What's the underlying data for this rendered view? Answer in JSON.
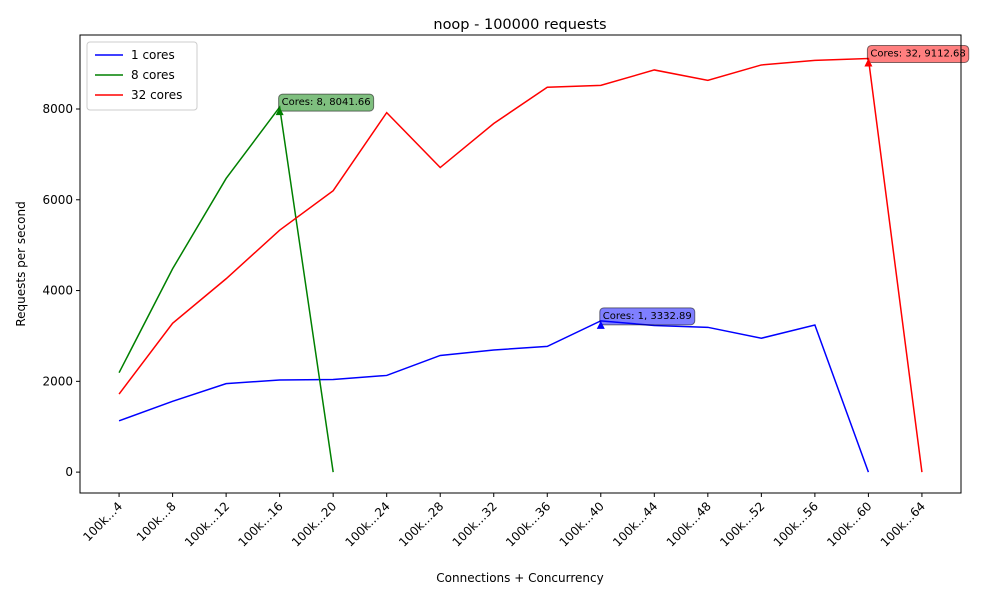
{
  "chart_data": {
    "type": "line",
    "title": "noop - 100000 requests",
    "xlabel": "Connections + Concurrency",
    "ylabel": "Requests per second",
    "categories": [
      "100k…4",
      "100k…8",
      "100k…12",
      "100k…16",
      "100k…20",
      "100k…24",
      "100k…28",
      "100k…32",
      "100k…36",
      "100k…40",
      "100k…44",
      "100k…48",
      "100k…52",
      "100k…56",
      "100k…60",
      "100k…64"
    ],
    "series": [
      {
        "name": "1 cores",
        "color": "#0000ff",
        "values": [
          1130,
          1560,
          1950,
          2030,
          2040,
          2130,
          2570,
          2690,
          2770,
          3332.89,
          3230,
          3190,
          2950,
          3240,
          0,
          null
        ]
      },
      {
        "name": "8 cores",
        "color": "#008000",
        "values": [
          2190,
          4480,
          6470,
          8041.66,
          0,
          null,
          null,
          null,
          null,
          null,
          null,
          null,
          null,
          null,
          null,
          null
        ]
      },
      {
        "name": "32 cores",
        "color": "#ff0000",
        "values": [
          1720,
          3280,
          4260,
          5330,
          6200,
          7920,
          6710,
          7680,
          8480,
          8520,
          8860,
          8630,
          8970,
          9070,
          9112.68,
          0
        ]
      }
    ],
    "annotations": [
      {
        "text": "Cores: 8, 8041.66",
        "x": "100k…16",
        "y": 8041.66,
        "color": "#008000"
      },
      {
        "text": "Cores: 1, 3332.89",
        "x": "100k…40",
        "y": 3332.89,
        "color": "#0000ff"
      },
      {
        "text": "Cores: 32, 9112.68",
        "x": "100k…60",
        "y": 9112.68,
        "color": "#ff0000"
      }
    ],
    "ylim": [
      -460,
      9630
    ],
    "yticks": [
      0,
      2000,
      4000,
      6000,
      8000
    ],
    "legend": "upper left",
    "grid": false
  }
}
